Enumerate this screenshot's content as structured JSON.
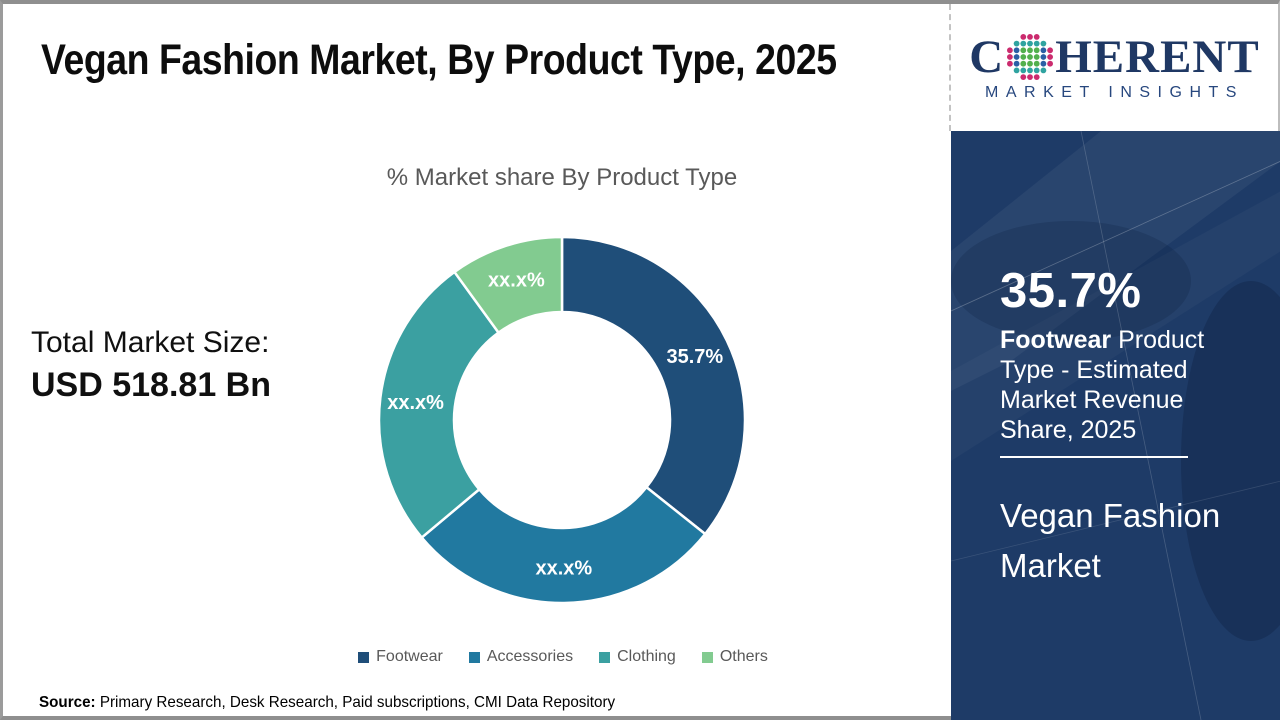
{
  "title": "Vegan Fashion Market, By Product Type, 2025",
  "logo": {
    "word_start": "C",
    "word_end": "HERENT",
    "subtitle": "MARKET INSIGHTS",
    "navy": "#1f3864"
  },
  "chart_data": {
    "type": "donut",
    "title": "% Market share By Product Type",
    "categories": [
      "Footwear",
      "Accessories",
      "Clothing",
      "Others"
    ],
    "values": [
      35.7,
      28.2,
      26.1,
      10.0
    ],
    "display_labels": [
      "35.7%",
      "xx.x%",
      "xx.x%",
      "xx.x%"
    ],
    "colors": [
      "#1F4E79",
      "#2179A0",
      "#3BA0A1",
      "#82CB90"
    ],
    "start_angle_deg": 0,
    "inner_radius_ratio": 0.59,
    "legend_position": "bottom"
  },
  "total_market": {
    "label": "Total Market Size:",
    "value": "USD 518.81 Bn"
  },
  "sidebar": {
    "stat_value": "35.7%",
    "stat_bold": "Footwear",
    "stat_rest": " Product Type - Estimated Market Revenue Share, 2025",
    "market_name": "Vegan Fashion Market",
    "bg_color": "#1e3b67"
  },
  "source": {
    "label": "Source:",
    "text": " Primary Research, Desk Research, Paid subscriptions, CMI Data Repository"
  }
}
